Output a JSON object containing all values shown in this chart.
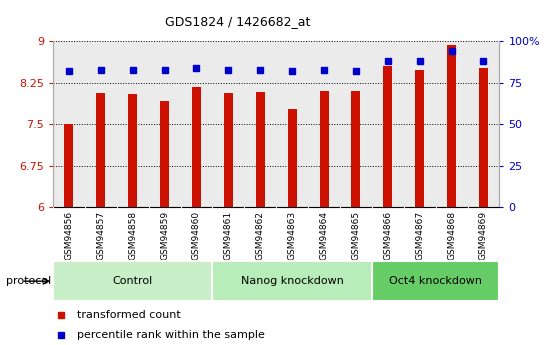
{
  "title": "GDS1824 / 1426682_at",
  "samples": [
    "GSM94856",
    "GSM94857",
    "GSM94858",
    "GSM94859",
    "GSM94860",
    "GSM94861",
    "GSM94862",
    "GSM94863",
    "GSM94864",
    "GSM94865",
    "GSM94866",
    "GSM94867",
    "GSM94868",
    "GSM94869"
  ],
  "red_values": [
    7.5,
    8.07,
    8.05,
    7.92,
    8.17,
    8.07,
    8.08,
    7.78,
    8.1,
    8.1,
    8.55,
    8.48,
    8.93,
    8.52
  ],
  "blue_values": [
    82,
    83,
    83,
    83,
    84,
    83,
    83,
    82,
    83,
    82,
    88,
    88,
    94,
    88
  ],
  "ylim_left": [
    6.0,
    9.0
  ],
  "ylim_right": [
    0,
    100
  ],
  "yticks_left": [
    6.0,
    6.75,
    7.5,
    8.25,
    9.0
  ],
  "yticks_right": [
    0,
    25,
    50,
    75,
    100
  ],
  "ytick_labels_left": [
    "6",
    "6.75",
    "7.5",
    "8.25",
    "9"
  ],
  "ytick_labels_right": [
    "0",
    "25",
    "50",
    "75",
    "100%"
  ],
  "groups": [
    {
      "label": "Control",
      "start": 0,
      "end": 5
    },
    {
      "label": "Nanog knockdown",
      "start": 5,
      "end": 10
    },
    {
      "label": "Oct4 knockdown",
      "start": 10,
      "end": 14
    }
  ],
  "group_colors": [
    "#c8efc8",
    "#b8ecb8",
    "#66cc66"
  ],
  "bar_color": "#cc1100",
  "dot_color": "#0000cc",
  "protocol_label": "protocol",
  "legend_items": [
    {
      "color": "#cc1100",
      "marker": "s",
      "label": "transformed count"
    },
    {
      "color": "#0000cc",
      "marker": "s",
      "label": "percentile rank within the sample"
    }
  ]
}
